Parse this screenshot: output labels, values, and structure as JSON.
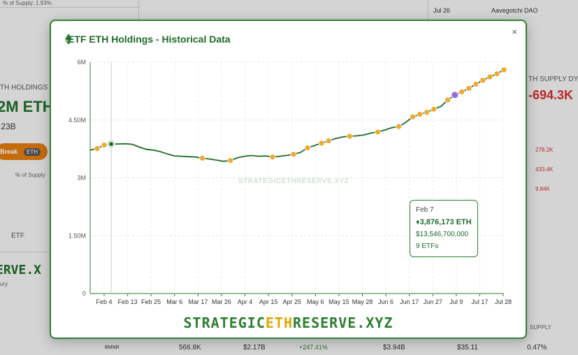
{
  "background": {
    "supply_pct": "% of Supply: 1.93%",
    "date_row": "Jul 26",
    "dao_name": "Aavegotchi DAO",
    "holdings_label": "TH HOLDINGS",
    "big_value": "2M ETH",
    "sub_value": ".23B",
    "break_chip": "Break",
    "eth_chip": "ETH",
    "supply_toggle": "% of Supply",
    "tab_etf": "ETF",
    "reserve_text": "ERVE.X",
    "ury": "ury",
    "right_label": "TH SUPPLY DY",
    "right_value": "-694.3K",
    "right_v1": "278.2K",
    "right_v2": "433.4K",
    "right_v3": "9.84K",
    "supply_col": "SUPPLY",
    "row": {
      "ticker": "BMNR",
      "eth": "566.8K",
      "usd": "$2.17B",
      "change": "+247.41%",
      "mcap": "$3.94B",
      "price": "$35.11",
      "pct": "0.47%"
    }
  },
  "modal": {
    "title": "ETF ETH Holdings - Historical Data",
    "close": "×",
    "watermark": "STRATEGICETHRESERVE.XYZ",
    "brand_left": "STRATEGIC",
    "brand_mid": "ETH",
    "brand_right": "RESERVE.XYZ",
    "tooltip": {
      "date": "Feb 7",
      "eth": "3,876,173 ETH",
      "usd": "$13,546,700,000",
      "etfs": "9 ETFs"
    }
  },
  "colors": {
    "line": "#1f6b2a",
    "event": "#f0a830",
    "highlight": "#9b6ddc",
    "accent": "#2e7d32"
  },
  "chart_data": {
    "type": "line",
    "title": "ETF ETH Holdings - Historical Data",
    "xlabel": "",
    "ylabel": "",
    "ylim": [
      0,
      6000000
    ],
    "yticks": [
      "0",
      "1.50M",
      "3M",
      "4.50M",
      "6M"
    ],
    "ytick_values": [
      0,
      1500000,
      3000000,
      4500000,
      6000000
    ],
    "xticks": [
      "Feb 4",
      "Feb 13",
      "Feb 25",
      "Mar 6",
      "Mar 17",
      "Mar 26",
      "Apr 4",
      "Apr 15",
      "Apr 25",
      "May 6",
      "May 15",
      "May 28",
      "Jun 6",
      "Jun 17",
      "Jun 27",
      "Jul 9",
      "Jul 17",
      "Jul 28"
    ],
    "x": [
      "Jan 28",
      "Feb 1",
      "Feb 3",
      "Feb 7",
      "Feb 10",
      "Feb 13",
      "Feb 17",
      "Feb 20",
      "Feb 25",
      "Mar 1",
      "Mar 6",
      "Mar 10",
      "Mar 17",
      "Mar 21",
      "Mar 26",
      "Apr 1",
      "Apr 4",
      "Apr 8",
      "Apr 11",
      "Apr 15",
      "Apr 18",
      "Apr 22",
      "Apr 25",
      "Apr 29",
      "May 2",
      "May 6",
      "May 9",
      "May 12",
      "May 15",
      "May 19",
      "May 22",
      "May 28",
      "May 30",
      "Jun 2",
      "Jun 4",
      "Jun 6",
      "Jun 9",
      "Jun 11",
      "Jun 13",
      "Jun 17",
      "Jun 20",
      "Jun 24",
      "Jun 27",
      "Jul 1",
      "Jul 3",
      "Jul 7",
      "Jul 9",
      "Jul 10",
      "Jul 11",
      "Jul 14",
      "Jul 15",
      "Jul 16",
      "Jul 17",
      "Jul 18",
      "Jul 21",
      "Jul 22",
      "Jul 23",
      "Jul 24",
      "Jul 25",
      "Jul 28"
    ],
    "values": [
      3720000,
      3760000,
      3850000,
      3876173,
      3880000,
      3885000,
      3870000,
      3800000,
      3740000,
      3720000,
      3680000,
      3620000,
      3570000,
      3560000,
      3550000,
      3540000,
      3510000,
      3490000,
      3460000,
      3430000,
      3450000,
      3520000,
      3560000,
      3580000,
      3560000,
      3570000,
      3540000,
      3560000,
      3580000,
      3610000,
      3660000,
      3780000,
      3840000,
      3900000,
      3960000,
      4020000,
      4060000,
      4080000,
      4090000,
      4110000,
      4160000,
      4190000,
      4240000,
      4300000,
      4330000,
      4440000,
      4580000,
      4650000,
      4700000,
      4780000,
      4850000,
      5020000,
      5150000,
      5230000,
      5320000,
      5430000,
      5530000,
      5620000,
      5700000,
      5800000
    ],
    "event_markers": [
      1,
      2,
      16,
      20,
      26,
      29,
      31,
      33,
      34,
      37,
      41,
      44,
      46,
      47,
      48,
      49,
      51,
      53,
      54,
      55,
      56,
      57,
      58,
      59
    ],
    "highlight_marker": 3,
    "purple_marker": 52,
    "tooltip_index": 3
  }
}
